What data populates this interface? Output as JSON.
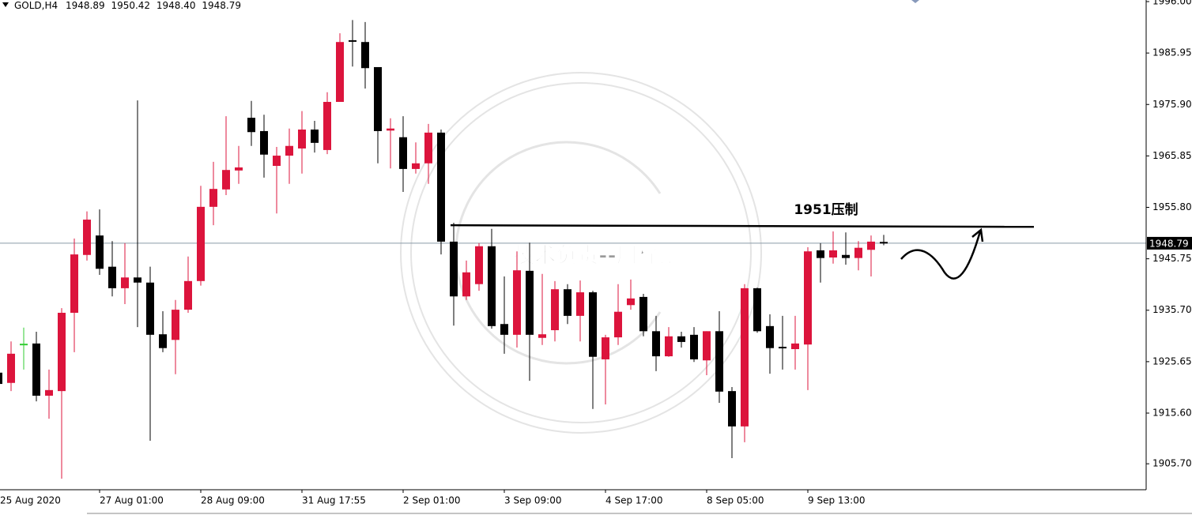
{
  "chart_data": {
    "type": "candlestick",
    "title": "GOLD,H4",
    "title_values": [
      "1948.89",
      "1950.42",
      "1948.40",
      "1948.79"
    ],
    "categories": [
      "25 Aug 2020",
      null,
      null,
      null,
      null,
      null,
      null,
      null,
      "27 Aug 01:00",
      null,
      null,
      null,
      null,
      null,
      null,
      null,
      "28 Aug 09:00",
      null,
      null,
      null,
      null,
      null,
      null,
      null,
      "31 Aug 17:55",
      null,
      null,
      null,
      null,
      null,
      null,
      null,
      "2 Sep 01:00",
      null,
      null,
      null,
      null,
      null,
      null,
      null,
      "3 Sep 09:00",
      null,
      null,
      null,
      null,
      null,
      null,
      null,
      "4 Sep 17:00",
      null,
      null,
      null,
      null,
      null,
      null,
      null,
      "8 Sep 05:00",
      null,
      null,
      null,
      null,
      null,
      null,
      null,
      "9 Sep 13:00",
      null,
      null,
      null,
      null,
      null,
      null
    ],
    "open": [
      1923.5,
      1921.5,
      1929.0,
      1929.2,
      1919.0,
      1919.9,
      1935.2,
      1946.5,
      1950.3,
      1944.2,
      1940.0,
      1942.1,
      1941.1,
      1931.0,
      1929.9,
      1935.8,
      1941.4,
      1955.9,
      1959.3,
      1963.0,
      1973.3,
      1970.7,
      1963.9,
      1965.9,
      1967.3,
      1971.0,
      1967.0,
      1976.4,
      1988.3,
      1988.1,
      1983.2,
      1970.8,
      1969.5,
      1963.3,
      1964.4,
      1970.4,
      1949.1,
      1938.4,
      1940.8,
      1948.2,
      1933.0,
      1930.9,
      1943.4,
      1930.3,
      1931.8,
      1939.8,
      1934.6,
      1939.2,
      1926.1,
      1930.4,
      1936.7,
      1938.3,
      1931.6,
      1926.7,
      1930.6,
      1930.9,
      1925.9,
      1931.6,
      1919.9,
      1913.0,
      1940.0,
      1932.6,
      1928.4,
      1928.1,
      1929.0,
      1947.4,
      1946.0,
      1946.5,
      1945.9,
      1947.5,
      1948.89
    ],
    "high": [
      1923.5,
      1929.6,
      1932.3,
      1931.5,
      1924.1,
      1936.1,
      1949.7,
      1955.0,
      1955.4,
      1949.2,
      1948.8,
      1976.7,
      1944.2,
      1935.5,
      1937.7,
      1946.2,
      1960.0,
      1964.7,
      1973.6,
      1967.8,
      1976.6,
      1973.9,
      1967.6,
      1971.2,
      1974.6,
      1972.7,
      1978.3,
      1989.8,
      1992.4,
      1992.0,
      1983.2,
      1973.2,
      1973.6,
      1968.5,
      1972.1,
      1971.0,
      1952.8,
      1945.4,
      1948.8,
      1951.6,
      1942.3,
      1947.2,
      1948.9,
      1942.8,
      1941.4,
      1940.8,
      1941.5,
      1939.5,
      1930.9,
      1940.8,
      1941.7,
      1938.9,
      1934.6,
      1932.4,
      1931.5,
      1932.4,
      1931.6,
      1935.5,
      1920.7,
      1940.8,
      1940.1,
      1934.9,
      1934.6,
      1934.6,
      1948.0,
      1948.8,
      1951.1,
      1950.9,
      1949.2,
      1950.3,
      1950.42
    ],
    "low": [
      1921.3,
      1919.9,
      1924.1,
      1917.9,
      1914.5,
      1902.8,
      1927.5,
      1945.4,
      1942.6,
      1938.4,
      1936.9,
      1932.4,
      1910.2,
      1927.5,
      1923.2,
      1935.2,
      1940.5,
      1952.3,
      1958.2,
      1960.4,
      1967.8,
      1961.6,
      1954.6,
      1960.4,
      1962.4,
      1966.5,
      1966.2,
      1976.4,
      1983.3,
      1979.0,
      1964.4,
      1963.4,
      1958.8,
      1962.4,
      1960.4,
      1946.6,
      1932.7,
      1937.7,
      1939.5,
      1932.1,
      1927.2,
      1928.4,
      1921.9,
      1928.9,
      1929.6,
      1933.0,
      1929.6,
      1916.4,
      1917.3,
      1928.9,
      1935.8,
      1930.6,
      1923.8,
      1926.6,
      1928.4,
      1925.6,
      1923.0,
      1917.6,
      1906.8,
      1909.9,
      1931.3,
      1923.3,
      1924.1,
      1924.1,
      1920.1,
      1941.1,
      1944.8,
      1944.6,
      1943.5,
      1942.3,
      1948.4
    ],
    "close": [
      1921.3,
      1927.2,
      1929.0,
      1919.0,
      1920.1,
      1935.2,
      1946.6,
      1953.4,
      1943.8,
      1940.0,
      1942.1,
      1941.1,
      1930.9,
      1928.3,
      1935.8,
      1941.4,
      1955.9,
      1959.4,
      1963.1,
      1963.6,
      1970.5,
      1966.1,
      1965.9,
      1967.8,
      1971.0,
      1968.4,
      1976.4,
      1988.1,
      1988.1,
      1983.0,
      1970.7,
      1971.2,
      1963.3,
      1964.4,
      1970.4,
      1949.1,
      1938.4,
      1943.1,
      1948.2,
      1932.6,
      1930.9,
      1943.5,
      1930.9,
      1931.0,
      1939.8,
      1934.6,
      1939.2,
      1926.6,
      1930.4,
      1935.4,
      1938.0,
      1931.6,
      1926.7,
      1930.6,
      1929.5,
      1926.1,
      1931.6,
      1919.8,
      1913.0,
      1940.0,
      1931.6,
      1928.3,
      1928.3,
      1929.2,
      1947.2,
      1945.9,
      1947.4,
      1945.9,
      1947.9,
      1949.1,
      1948.79
    ],
    "up_color": "#dc143c",
    "down_color": "#000000",
    "doji_color": "#32cd32",
    "ylim": [
      1900.63,
      1996.31
    ],
    "yticks": [
      {
        "value": 1996.0,
        "label": "1996.00"
      },
      {
        "value": 1985.95,
        "label": "1985.95"
      },
      {
        "value": 1975.9,
        "label": "1975.90"
      },
      {
        "value": 1965.85,
        "label": "1965.85"
      },
      {
        "value": 1955.8,
        "label": "1955.80"
      },
      {
        "value": 1945.75,
        "label": "1945.75"
      },
      {
        "value": 1935.7,
        "label": "1935.70"
      },
      {
        "value": 1925.65,
        "label": "1925.65"
      },
      {
        "value": 1915.6,
        "label": "1915.60"
      },
      {
        "value": 1905.7,
        "label": "1905.70"
      }
    ],
    "current_price": {
      "value": 1948.79,
      "label": "1948.79"
    },
    "resistance": {
      "value": 1952.3,
      "label": "1951压制"
    },
    "watermark": "技术负责--周梓凯"
  }
}
